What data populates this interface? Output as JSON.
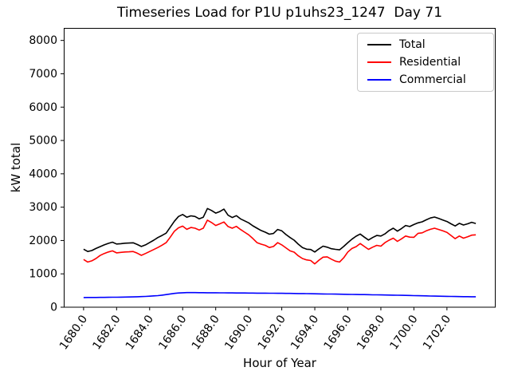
{
  "window": {
    "background": "#ffffff"
  },
  "chart_data": {
    "type": "line",
    "title": "Timeseries Load for P1U p1uhs23_1247  Day 71",
    "xlabel": "Hour of Year",
    "ylabel": "kW total",
    "xlim": [
      1678.8,
      1704.95
    ],
    "ylim": [
      0,
      8375
    ],
    "grid": false,
    "legend_position": "upper right",
    "xticks": [
      1680,
      1682,
      1684,
      1686,
      1688,
      1690,
      1692,
      1694,
      1696,
      1698,
      1700,
      1702
    ],
    "xtick_labels": [
      "1680.0",
      "1682.0",
      "1684.0",
      "1686.0",
      "1688.0",
      "1690.0",
      "1692.0",
      "1694.0",
      "1696.0",
      "1698.0",
      "1700.0",
      "1702.0"
    ],
    "yticks": [
      0,
      1000,
      2000,
      3000,
      4000,
      5000,
      6000,
      7000,
      8000
    ],
    "ytick_labels": [
      "0",
      "1000",
      "2000",
      "3000",
      "4000",
      "5000",
      "6000",
      "7000",
      "8000"
    ],
    "x_start": 1680.0,
    "x_step": 0.25,
    "x_count": 96,
    "series": [
      {
        "name": "Total",
        "color": "#000000",
        "values": [
          1740,
          1670,
          1700,
          1760,
          1815,
          1870,
          1915,
          1950,
          1895,
          1905,
          1920,
          1925,
          1930,
          1880,
          1820,
          1870,
          1940,
          2010,
          2090,
          2150,
          2220,
          2400,
          2580,
          2720,
          2780,
          2700,
          2740,
          2720,
          2650,
          2700,
          2960,
          2900,
          2820,
          2870,
          2940,
          2760,
          2690,
          2745,
          2650,
          2590,
          2530,
          2440,
          2370,
          2300,
          2250,
          2190,
          2210,
          2330,
          2290,
          2180,
          2090,
          2010,
          1890,
          1790,
          1740,
          1730,
          1655,
          1750,
          1830,
          1800,
          1755,
          1735,
          1720,
          1820,
          1935,
          2040,
          2130,
          2195,
          2100,
          2015,
          2090,
          2150,
          2135,
          2200,
          2300,
          2370,
          2280,
          2360,
          2450,
          2420,
          2480,
          2530,
          2560,
          2620,
          2675,
          2705,
          2660,
          2615,
          2570,
          2500,
          2435,
          2515,
          2465,
          2500,
          2545,
          2510
        ]
      },
      {
        "name": "Residential",
        "color": "#ff0000",
        "values": [
          1430,
          1355,
          1390,
          1460,
          1550,
          1610,
          1655,
          1690,
          1630,
          1645,
          1655,
          1660,
          1670,
          1620,
          1555,
          1610,
          1670,
          1730,
          1790,
          1860,
          1935,
          2100,
          2280,
          2380,
          2430,
          2335,
          2390,
          2370,
          2315,
          2370,
          2610,
          2540,
          2450,
          2500,
          2555,
          2420,
          2370,
          2425,
          2330,
          2250,
          2170,
          2060,
          1935,
          1890,
          1855,
          1790,
          1820,
          1935,
          1870,
          1780,
          1690,
          1650,
          1540,
          1460,
          1420,
          1400,
          1300,
          1410,
          1500,
          1510,
          1440,
          1380,
          1355,
          1480,
          1655,
          1760,
          1815,
          1910,
          1820,
          1735,
          1800,
          1855,
          1830,
          1935,
          2010,
          2070,
          1975,
          2050,
          2135,
          2100,
          2095,
          2215,
          2230,
          2290,
          2335,
          2370,
          2330,
          2290,
          2245,
          2150,
          2055,
          2135,
          2070,
          2110,
          2160,
          2170
        ]
      },
      {
        "name": "Commercial",
        "color": "#0000ff",
        "values": [
          290,
          291,
          292,
          293,
          294,
          295,
          297,
          298,
          300,
          302,
          304,
          306,
          309,
          313,
          318,
          324,
          331,
          339,
          348,
          362,
          378,
          398,
          415,
          427,
          434,
          437,
          438,
          437,
          436,
          435,
          434,
          433,
          432,
          431,
          430,
          429,
          428,
          427,
          426,
          425,
          424,
          423,
          422,
          421,
          420,
          419,
          418,
          417,
          416,
          414,
          413,
          411,
          410,
          408,
          406,
          404,
          402,
          400,
          398,
          396,
          394,
          392,
          390,
          388,
          386,
          383,
          381,
          379,
          377,
          375,
          372,
          370,
          368,
          366,
          363,
          361,
          359,
          356,
          354,
          351,
          348,
          345,
          342,
          339,
          336,
          333,
          330,
          327,
          325,
          322,
          320,
          318,
          316,
          315,
          314,
          313
        ]
      }
    ]
  }
}
